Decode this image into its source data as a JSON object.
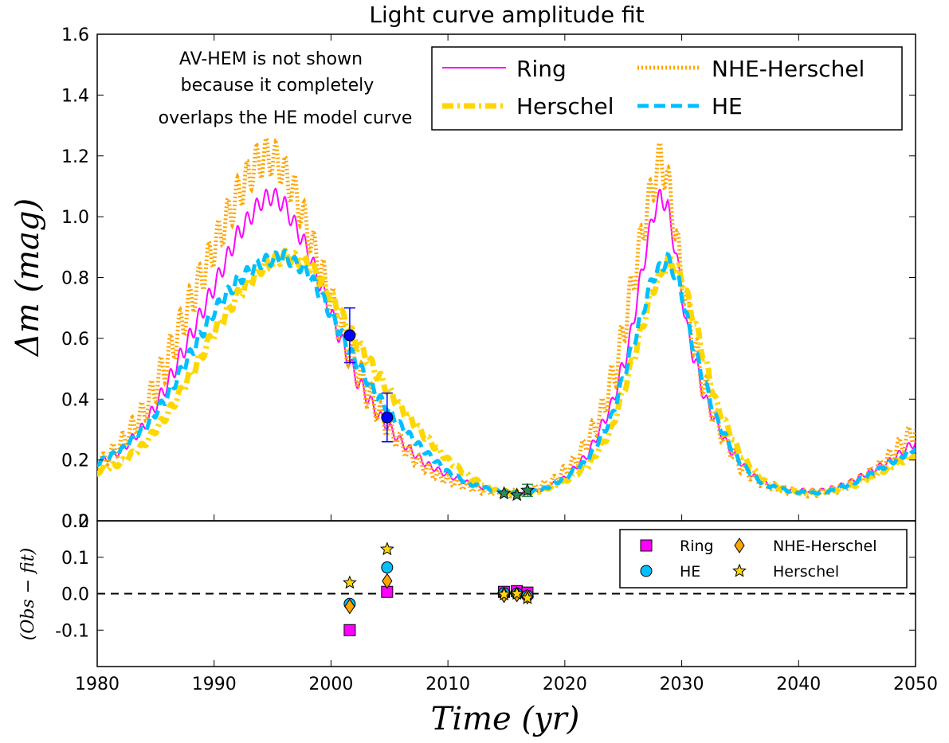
{
  "chart_data": [
    {
      "panel": "top",
      "type": "line",
      "title": "Light curve amplitude fit",
      "ylabel": "Δm (mag)",
      "xlim": [
        1980,
        2050
      ],
      "ylim": [
        0.0,
        1.6
      ],
      "yticks": [
        "0.0",
        "0.2",
        "0.4",
        "0.6",
        "0.8",
        "1.0",
        "1.2",
        "1.4",
        "1.6"
      ],
      "legend": "top-right",
      "annotation": [
        "AV-HEM is not shown",
        "because it completely",
        "overlaps the HE model curve"
      ],
      "series": [
        {
          "name": "Ring",
          "color": "#ff00ff",
          "style": "solid",
          "ripple": 0.03,
          "points": [
            [
              1980,
              0.19
            ],
            [
              1982,
              0.23
            ],
            [
              1984,
              0.31
            ],
            [
              1986,
              0.45
            ],
            [
              1988,
              0.61
            ],
            [
              1990,
              0.77
            ],
            [
              1992,
              0.94
            ],
            [
              1994,
              1.05
            ],
            [
              1995,
              1.07
            ],
            [
              1996,
              1.04
            ],
            [
              1998,
              0.89
            ],
            [
              2000,
              0.68
            ],
            [
              2002,
              0.48
            ],
            [
              2004,
              0.35
            ],
            [
              2006,
              0.26
            ],
            [
              2008,
              0.19
            ],
            [
              2010,
              0.15
            ],
            [
              2012,
              0.12
            ],
            [
              2014,
              0.1
            ],
            [
              2016,
              0.09
            ],
            [
              2018,
              0.1
            ],
            [
              2020,
              0.14
            ],
            [
              2022,
              0.22
            ],
            [
              2024,
              0.38
            ],
            [
              2025.5,
              0.58
            ],
            [
              2026.5,
              0.8
            ],
            [
              2027.5,
              1.0
            ],
            [
              2028.2,
              1.07
            ],
            [
              2028.8,
              1.03
            ],
            [
              2029.5,
              0.88
            ],
            [
              2030.5,
              0.62
            ],
            [
              2032,
              0.4
            ],
            [
              2034,
              0.24
            ],
            [
              2036,
              0.15
            ],
            [
              2038,
              0.11
            ],
            [
              2040,
              0.1
            ],
            [
              2042,
              0.1
            ],
            [
              2044,
              0.12
            ],
            [
              2046,
              0.16
            ],
            [
              2048,
              0.2
            ],
            [
              2050,
              0.26
            ]
          ]
        },
        {
          "name": "NHE-Herschel",
          "color": "#ffa500",
          "style": "dotted",
          "ripple": 0.06,
          "points": [
            [
              1980,
              0.18
            ],
            [
              1982,
              0.25
            ],
            [
              1984,
              0.36
            ],
            [
              1986,
              0.53
            ],
            [
              1988,
              0.72
            ],
            [
              1990,
              0.9
            ],
            [
              1992,
              1.07
            ],
            [
              1993.5,
              1.17
            ],
            [
              1994.5,
              1.2
            ],
            [
              1995.5,
              1.18
            ],
            [
              1997,
              1.07
            ],
            [
              1999,
              0.84
            ],
            [
              2001,
              0.61
            ],
            [
              2003,
              0.43
            ],
            [
              2005,
              0.3
            ],
            [
              2007,
              0.21
            ],
            [
              2009,
              0.15
            ],
            [
              2011,
              0.12
            ],
            [
              2013,
              0.1
            ],
            [
              2015,
              0.09
            ],
            [
              2017,
              0.1
            ],
            [
              2019,
              0.13
            ],
            [
              2021,
              0.2
            ],
            [
              2023,
              0.34
            ],
            [
              2024.5,
              0.52
            ],
            [
              2025.8,
              0.78
            ],
            [
              2027,
              1.02
            ],
            [
              2028.2,
              1.2
            ],
            [
              2029,
              1.08
            ],
            [
              2030,
              0.8
            ],
            [
              2031.5,
              0.5
            ],
            [
              2033,
              0.32
            ],
            [
              2035,
              0.18
            ],
            [
              2037,
              0.12
            ],
            [
              2039,
              0.1
            ],
            [
              2041,
              0.09
            ],
            [
              2043,
              0.1
            ],
            [
              2045,
              0.13
            ],
            [
              2047,
              0.18
            ],
            [
              2050,
              0.3
            ]
          ]
        },
        {
          "name": "Herschel",
          "color": "#ffd700",
          "style": "dashdot",
          "ripple": 0.02,
          "points": [
            [
              1980,
              0.16
            ],
            [
              1982,
              0.19
            ],
            [
              1984,
              0.25
            ],
            [
              1986,
              0.35
            ],
            [
              1988,
              0.48
            ],
            [
              1990,
              0.62
            ],
            [
              1992,
              0.74
            ],
            [
              1994,
              0.83
            ],
            [
              1996,
              0.87
            ],
            [
              1998,
              0.85
            ],
            [
              2000,
              0.74
            ],
            [
              2002,
              0.6
            ],
            [
              2004,
              0.48
            ],
            [
              2006,
              0.37
            ],
            [
              2008,
              0.28
            ],
            [
              2010,
              0.2
            ],
            [
              2012,
              0.14
            ],
            [
              2014,
              0.1
            ],
            [
              2016,
              0.09
            ],
            [
              2018,
              0.1
            ],
            [
              2020,
              0.13
            ],
            [
              2022,
              0.18
            ],
            [
              2024,
              0.3
            ],
            [
              2026,
              0.55
            ],
            [
              2027.5,
              0.76
            ],
            [
              2029,
              0.86
            ],
            [
              2030,
              0.8
            ],
            [
              2031.5,
              0.6
            ],
            [
              2033,
              0.38
            ],
            [
              2035,
              0.22
            ],
            [
              2037,
              0.13
            ],
            [
              2039,
              0.1
            ],
            [
              2041,
              0.09
            ],
            [
              2043,
              0.1
            ],
            [
              2045,
              0.12
            ],
            [
              2047,
              0.16
            ],
            [
              2050,
              0.22
            ]
          ]
        },
        {
          "name": "HE",
          "color": "#00bfff",
          "style": "dashed",
          "ripple": 0.02,
          "points": [
            [
              1980,
              0.19
            ],
            [
              1982,
              0.23
            ],
            [
              1984,
              0.3
            ],
            [
              1986,
              0.41
            ],
            [
              1988,
              0.55
            ],
            [
              1990,
              0.69
            ],
            [
              1992,
              0.79
            ],
            [
              1994,
              0.85
            ],
            [
              1996,
              0.87
            ],
            [
              1998,
              0.82
            ],
            [
              2000,
              0.68
            ],
            [
              2002,
              0.53
            ],
            [
              2004,
              0.41
            ],
            [
              2006,
              0.31
            ],
            [
              2008,
              0.23
            ],
            [
              2010,
              0.16
            ],
            [
              2012,
              0.12
            ],
            [
              2014,
              0.1
            ],
            [
              2016,
              0.09
            ],
            [
              2018,
              0.1
            ],
            [
              2020,
              0.14
            ],
            [
              2022,
              0.2
            ],
            [
              2024,
              0.34
            ],
            [
              2026,
              0.6
            ],
            [
              2027.5,
              0.8
            ],
            [
              2028.8,
              0.86
            ],
            [
              2029.8,
              0.78
            ],
            [
              2031,
              0.57
            ],
            [
              2033,
              0.33
            ],
            [
              2035,
              0.19
            ],
            [
              2037,
              0.12
            ],
            [
              2039,
              0.1
            ],
            [
              2041,
              0.09
            ],
            [
              2043,
              0.1
            ],
            [
              2045,
              0.13
            ],
            [
              2047,
              0.17
            ],
            [
              2050,
              0.24
            ]
          ]
        }
      ],
      "observations": [
        {
          "x": 2001.6,
          "y": 0.61,
          "err": 0.09,
          "marker": "circle",
          "color": "#0000ff"
        },
        {
          "x": 2004.8,
          "y": 0.34,
          "err": 0.08,
          "marker": "circle",
          "color": "#0000ff"
        },
        {
          "x": 2014.8,
          "y": 0.09,
          "err": 0.0,
          "marker": "star",
          "color": "#2e8b57"
        },
        {
          "x": 2015.9,
          "y": 0.085,
          "err": 0.0,
          "marker": "star",
          "color": "#2e8b57"
        },
        {
          "x": 2016.8,
          "y": 0.1,
          "err": 0.02,
          "marker": "star",
          "color": "#2e8b57"
        }
      ]
    },
    {
      "panel": "bottom",
      "type": "scatter",
      "xlabel": "Time (yr)",
      "ylabel": "(Obs − fit)",
      "xlim": [
        1980,
        2050
      ],
      "ylim": [
        -0.2,
        0.2
      ],
      "yticks": [
        "-0.1",
        "0.0",
        "0.1",
        "0.2"
      ],
      "xticks": [
        "1980",
        "1990",
        "2000",
        "2010",
        "2020",
        "2030",
        "2040",
        "2050"
      ],
      "legend": "top-right",
      "reference_line": 0.0,
      "series": [
        {
          "name": "Ring",
          "marker": "square",
          "color": "#ff00ff",
          "points": [
            [
              2001.6,
              -0.1
            ],
            [
              2004.8,
              0.005
            ],
            [
              2014.8,
              0.005
            ],
            [
              2015.9,
              0.007
            ],
            [
              2016.8,
              0.003
            ]
          ]
        },
        {
          "name": "HE",
          "marker": "circle",
          "color": "#00bfff",
          "points": [
            [
              2001.6,
              -0.028
            ],
            [
              2004.8,
              0.072
            ],
            [
              2014.8,
              0.001
            ],
            [
              2015.9,
              0.0
            ],
            [
              2016.8,
              -0.006
            ]
          ]
        },
        {
          "name": "NHE-Herschel",
          "marker": "diamond",
          "color": "#ffa500",
          "points": [
            [
              2001.6,
              -0.035
            ],
            [
              2004.8,
              0.035
            ],
            [
              2014.8,
              -0.004
            ],
            [
              2015.9,
              -0.002
            ],
            [
              2016.8,
              -0.008
            ]
          ]
        },
        {
          "name": "Herschel",
          "marker": "star",
          "color": "#ffd700",
          "points": [
            [
              2001.6,
              0.03
            ],
            [
              2004.8,
              0.122
            ],
            [
              2014.8,
              -0.002
            ],
            [
              2015.9,
              0.0
            ],
            [
              2016.8,
              -0.012
            ]
          ]
        }
      ]
    }
  ]
}
